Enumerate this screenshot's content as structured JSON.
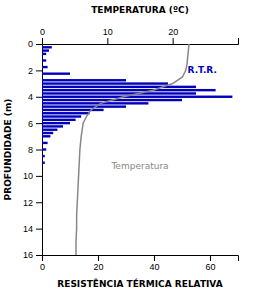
{
  "chart_data": {
    "type": "bar",
    "orientation": "horizontal",
    "xlabel": "RESISTÊNCIA TÉRMICA RELATIVA",
    "ylabel": "PROFUNDIDADE (m)",
    "x2label": "TEMPERATURA (ºC)",
    "xlim": [
      0,
      70
    ],
    "xticks": [
      0,
      20,
      40,
      60
    ],
    "x2lim": [
      0,
      30
    ],
    "x2ticks": [
      0,
      10,
      20
    ],
    "ylim": [
      0,
      16
    ],
    "yticks": [
      0,
      2,
      4,
      6,
      8,
      10,
      12,
      14,
      16
    ],
    "grid": false,
    "series": [
      {
        "type": "bar",
        "color": "#0000bb",
        "y": [
          0.25,
          0.5,
          0.75,
          1.25,
          1.75,
          2.25,
          2.75,
          3.0,
          3.25,
          3.5,
          3.75,
          4.0,
          4.25,
          4.5,
          4.75,
          5.0,
          5.25,
          5.5,
          5.75,
          6.0,
          6.25,
          6.5,
          6.75,
          7.0,
          7.5,
          8.0,
          8.5,
          9.0
        ],
        "values": [
          3.5,
          2.5,
          1.5,
          1.5,
          2.0,
          10.0,
          30.0,
          45.0,
          55.0,
          62.0,
          55.0,
          68.0,
          50.0,
          38.0,
          30.0,
          22.0,
          17.0,
          14.0,
          12.0,
          10.0,
          7.5,
          5.5,
          4.0,
          3.0,
          2.0,
          1.5,
          1.0,
          1.0
        ]
      },
      {
        "type": "line",
        "axis": "x2",
        "color": "#888888",
        "y": [
          0,
          0.5,
          1.0,
          1.5,
          2.0,
          2.5,
          3.0,
          3.5,
          4.0,
          4.5,
          5.0,
          5.5,
          6.0,
          7.0,
          8.0,
          9.0,
          10.0,
          11.0,
          12.0,
          13.0,
          14.0,
          15.0,
          16.0
        ],
        "values": [
          22.5,
          22.4,
          22.3,
          22.2,
          22.0,
          21.5,
          20.0,
          17.0,
          12.5,
          9.0,
          7.5,
          6.8,
          6.3,
          6.0,
          5.8,
          5.7,
          5.6,
          5.5,
          5.4,
          5.3,
          5.3,
          5.2,
          5.2
        ]
      }
    ],
    "annotations": [
      {
        "text": "Temperatura",
        "x": 35,
        "y": 9.5,
        "color": "#888888"
      },
      {
        "text": "R.T.R.",
        "x": 52,
        "y": 2.2,
        "color": "#0000bb"
      }
    ]
  }
}
